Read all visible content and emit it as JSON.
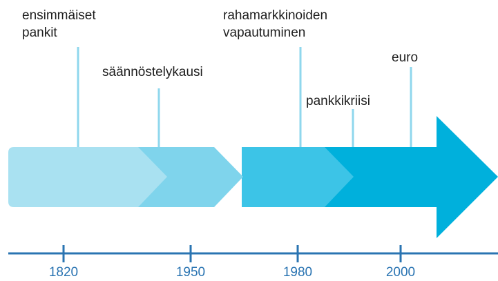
{
  "events": [
    {
      "label_lines": [
        "ensimmäiset",
        "pankit"
      ]
    },
    {
      "label_lines": [
        "säännöstelykausi"
      ]
    },
    {
      "label_lines": [
        "rahamarkkinoiden",
        "vapautuminen"
      ]
    },
    {
      "label_lines": [
        "pankkikriisi"
      ]
    },
    {
      "label_lines": [
        "euro"
      ]
    }
  ],
  "axis_labels": [
    "1820",
    "1950",
    "1980",
    "2000"
  ]
}
